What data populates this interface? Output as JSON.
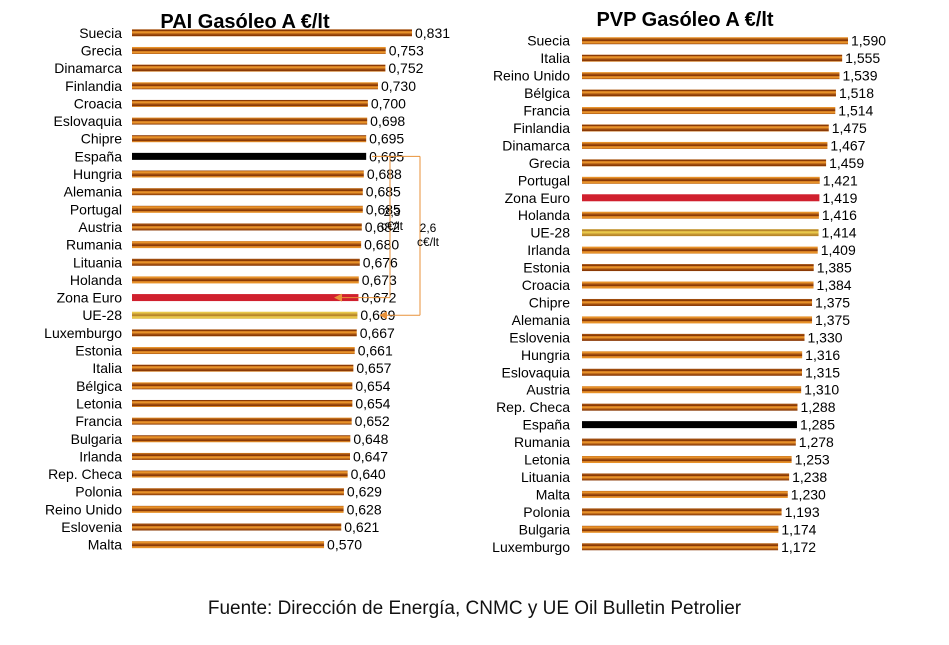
{
  "source_text": "Fuente: Dirección de Energía, CNMC y UE Oil Bulletin Petrolier",
  "colors": {
    "bar_default": "#E8922A",
    "bar_stripe": "#8B3A06",
    "bar_spain": "#000000",
    "bar_eurozone": "#D0202E",
    "bar_eu28": "#E9C84A",
    "arrow": "#E8923A"
  },
  "annotations": {
    "diff_eurozone": "2,3\nc€/lt",
    "diff_eu28": "2,6\nc€/lt"
  },
  "chart_data": [
    {
      "type": "bar",
      "orientation": "horizontal",
      "title": "PAI Gasóleo A €/lt",
      "categories": [
        "Suecia",
        "Grecia",
        "Dinamarca",
        "Finlandia",
        "Croacia",
        "Eslovaquia",
        "Chipre",
        "España",
        "Hungria",
        "Alemania",
        "Portugal",
        "Austria",
        "Rumania",
        "Lituania",
        "Holanda",
        "Zona Euro",
        "UE-28",
        "Luxemburgo",
        "Estonia",
        "Italia",
        "Bélgica",
        "Letonia",
        "Francia",
        "Bulgaria",
        "Irlanda",
        "Rep. Checa",
        "Polonia",
        "Reino Unido",
        "Eslovenia",
        "Malta"
      ],
      "values": [
        0.831,
        0.753,
        0.752,
        0.73,
        0.7,
        0.698,
        0.695,
        0.695,
        0.688,
        0.685,
        0.685,
        0.682,
        0.68,
        0.676,
        0.673,
        0.672,
        0.669,
        0.667,
        0.661,
        0.657,
        0.654,
        0.654,
        0.652,
        0.648,
        0.647,
        0.64,
        0.629,
        0.628,
        0.621,
        0.57
      ],
      "value_labels": [
        "0,831",
        "0,753",
        "0,752",
        "0,730",
        "0,700",
        "0,698",
        "0,695",
        "0,695",
        "0,688",
        "0,685",
        "0,685",
        "0,682",
        "0,680",
        "0,676",
        "0,673",
        "0,672",
        "0,669",
        "0,667",
        "0,661",
        "0,657",
        "0,654",
        "0,654",
        "0,652",
        "0,648",
        "0,647",
        "0,640",
        "0,629",
        "0,628",
        "0,621",
        "0,570"
      ],
      "highlights": {
        "España": "bar_spain",
        "Zona Euro": "bar_eurozone",
        "UE-28": "bar_eu28"
      }
    },
    {
      "type": "bar",
      "orientation": "horizontal",
      "title": "PVP Gasóleo A €/lt",
      "categories": [
        "Suecia",
        "Italia",
        "Reino Unido",
        "Bélgica",
        "Francia",
        "Finlandia",
        "Dinamarca",
        "Grecia",
        "Portugal",
        "Zona Euro",
        "Holanda",
        "UE-28",
        "Irlanda",
        "Estonia",
        "Croacia",
        "Chipre",
        "Alemania",
        "Eslovenia",
        "Hungria",
        "Eslovaquia",
        "Austria",
        "Rep. Checa",
        "España",
        "Rumania",
        "Letonia",
        "Lituania",
        "Malta",
        "Polonia",
        "Bulgaria",
        "Luxemburgo"
      ],
      "values": [
        1.59,
        1.555,
        1.539,
        1.518,
        1.514,
        1.475,
        1.467,
        1.459,
        1.421,
        1.419,
        1.416,
        1.414,
        1.409,
        1.385,
        1.384,
        1.375,
        1.375,
        1.33,
        1.316,
        1.315,
        1.31,
        1.288,
        1.285,
        1.278,
        1.253,
        1.238,
        1.23,
        1.193,
        1.174,
        1.172
      ],
      "value_labels": [
        "1,590",
        "1,555",
        "1,539",
        "1,518",
        "1,514",
        "1,475",
        "1,467",
        "1,459",
        "1,421",
        "1,419",
        "1,416",
        "1,414",
        "1,409",
        "1,385",
        "1,384",
        "1,375",
        "1,375",
        "1,330",
        "1,316",
        "1,315",
        "1,310",
        "1,288",
        "1,285",
        "1,278",
        "1,253",
        "1,238",
        "1,230",
        "1,193",
        "1,174",
        "1,172"
      ],
      "highlights": {
        "España": "bar_spain",
        "Zona Euro": "bar_eurozone",
        "UE-28": "bar_eu28"
      }
    }
  ]
}
